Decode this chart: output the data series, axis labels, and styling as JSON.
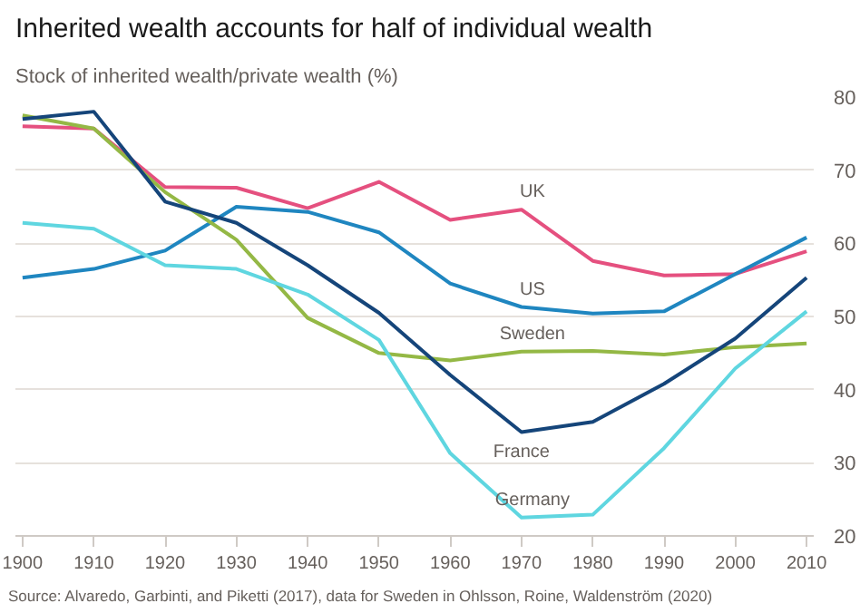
{
  "chart_data": {
    "type": "line",
    "title": "Inherited wealth accounts for half of individual wealth",
    "subtitle": "Stock of inherited wealth/private wealth (%)",
    "x": [
      1900,
      1910,
      1920,
      1930,
      1940,
      1950,
      1960,
      1970,
      1980,
      1990,
      2000,
      2010
    ],
    "series": [
      {
        "name": "UK",
        "color": "#e5507f",
        "values": [
          76,
          75.7,
          67.7,
          67.6,
          64.8,
          68.4,
          63.2,
          64.6,
          57.6,
          55.6,
          55.8,
          58.9
        ]
      },
      {
        "name": "US",
        "color": "#1f86c0",
        "values": [
          55.3,
          56.5,
          59,
          65,
          64.3,
          61.5,
          54.5,
          51.3,
          50.4,
          50.7,
          55.8,
          60.8
        ]
      },
      {
        "name": "Sweden",
        "color": "#94b845",
        "values": [
          77.5,
          75.7,
          67,
          60.5,
          49.8,
          45,
          44,
          45.2,
          45.3,
          44.8,
          45.8,
          46.3
        ]
      },
      {
        "name": "France",
        "color": "#15457a",
        "values": [
          77,
          78,
          65.7,
          62.8,
          57,
          50.5,
          42,
          34.2,
          35.6,
          40.8,
          47,
          55.3
        ]
      },
      {
        "name": "Germany",
        "color": "#5fd6e0",
        "values": [
          62.8,
          62,
          57,
          56.5,
          53,
          46.8,
          31.3,
          22.5,
          22.9,
          32,
          42.9,
          50.7
        ]
      }
    ],
    "xlim": [
      1899,
      2011
    ],
    "ylim": [
      20,
      80
    ],
    "xticks": [
      1900,
      1910,
      1920,
      1930,
      1940,
      1950,
      1960,
      1970,
      1980,
      1990,
      2000,
      2010
    ],
    "yticks": [
      20,
      30,
      40,
      50,
      60,
      70,
      80
    ],
    "grid": "y",
    "legend": false,
    "annotations": [
      "Source: Alvaredo, Garbinti, and Piketti (2017), data for Sweden in Ohlsson, Roine, Waldenström (2020)"
    ]
  }
}
